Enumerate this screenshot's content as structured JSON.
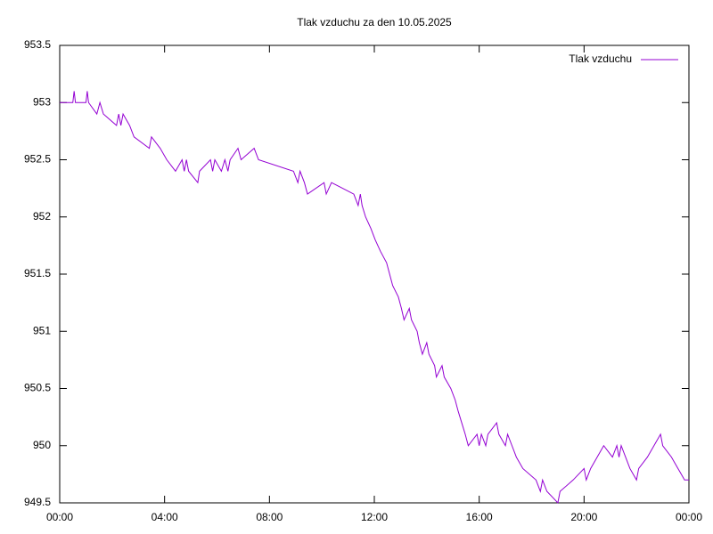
{
  "chart_data": {
    "type": "line",
    "title": "Tlak vzduchu za den 10.05.2025",
    "x": [
      0,
      30,
      33,
      36,
      60,
      63,
      66,
      85,
      92,
      100,
      130,
      135,
      140,
      145,
      160,
      170,
      205,
      210,
      230,
      245,
      265,
      280,
      285,
      290,
      295,
      316,
      320,
      345,
      350,
      355,
      370,
      378,
      385,
      390,
      408,
      415,
      445,
      455,
      535,
      545,
      550,
      560,
      567,
      605,
      610,
      622,
      673,
      683,
      688,
      692,
      700,
      712,
      722,
      734,
      748,
      755,
      762,
      775,
      782,
      788,
      800,
      805,
      818,
      823,
      830,
      840,
      845,
      858,
      862,
      875,
      880,
      895,
      905,
      912,
      920,
      928,
      935,
      955,
      960,
      965,
      975,
      980,
      1000,
      1005,
      1020,
      1025,
      1035,
      1045,
      1060,
      1090,
      1100,
      1105,
      1115,
      1140,
      1145,
      1175,
      1200,
      1205,
      1215,
      1230,
      1245,
      1265,
      1275,
      1280,
      1285,
      1295,
      1305,
      1320,
      1325,
      1345,
      1360,
      1375,
      1380,
      1400,
      1415,
      1430,
      1440
    ],
    "series": [
      {
        "name": "Tlak vzduchu",
        "color": "#9400d3",
        "values": [
          953.0,
          953.0,
          953.1,
          953.0,
          953.0,
          953.1,
          953.0,
          952.9,
          953.0,
          952.9,
          952.8,
          952.9,
          952.8,
          952.9,
          952.8,
          952.7,
          952.6,
          952.7,
          952.6,
          952.5,
          952.4,
          952.5,
          952.4,
          952.5,
          952.4,
          952.3,
          952.4,
          952.5,
          952.4,
          952.5,
          952.4,
          952.5,
          952.4,
          952.5,
          952.6,
          952.5,
          952.6,
          952.5,
          952.4,
          952.3,
          952.4,
          952.3,
          952.2,
          952.3,
          952.2,
          952.3,
          952.2,
          952.1,
          952.2,
          952.1,
          952.0,
          951.9,
          951.8,
          951.7,
          951.6,
          951.5,
          951.4,
          951.3,
          951.2,
          951.1,
          951.2,
          951.1,
          951.0,
          950.9,
          950.8,
          950.9,
          950.8,
          950.7,
          950.6,
          950.7,
          950.6,
          950.5,
          950.4,
          950.3,
          950.2,
          950.1,
          950.0,
          950.1,
          950.0,
          950.1,
          950.0,
          950.1,
          950.2,
          950.1,
          950.0,
          950.1,
          950.0,
          949.9,
          949.8,
          949.7,
          949.6,
          949.7,
          949.6,
          949.5,
          949.6,
          949.7,
          949.8,
          949.7,
          949.8,
          949.9,
          950.0,
          949.9,
          950.0,
          949.9,
          950.0,
          949.9,
          949.8,
          949.7,
          949.8,
          949.9,
          950.0,
          950.1,
          950.0,
          949.9,
          949.8,
          949.7,
          949.7
        ]
      }
    ],
    "xlim": [
      0,
      1440
    ],
    "xticks": [
      {
        "value": 0,
        "label": "00:00"
      },
      {
        "value": 240,
        "label": "04:00"
      },
      {
        "value": 480,
        "label": "08:00"
      },
      {
        "value": 720,
        "label": "12:00"
      },
      {
        "value": 960,
        "label": "16:00"
      },
      {
        "value": 1200,
        "label": "20:00"
      },
      {
        "value": 1440,
        "label": "00:00"
      }
    ],
    "ylim": [
      949.5,
      953.5
    ],
    "yticks": [
      949.5,
      950,
      950.5,
      951,
      951.5,
      952,
      952.5,
      953,
      953.5
    ],
    "grid": false,
    "legend": "top-right"
  }
}
